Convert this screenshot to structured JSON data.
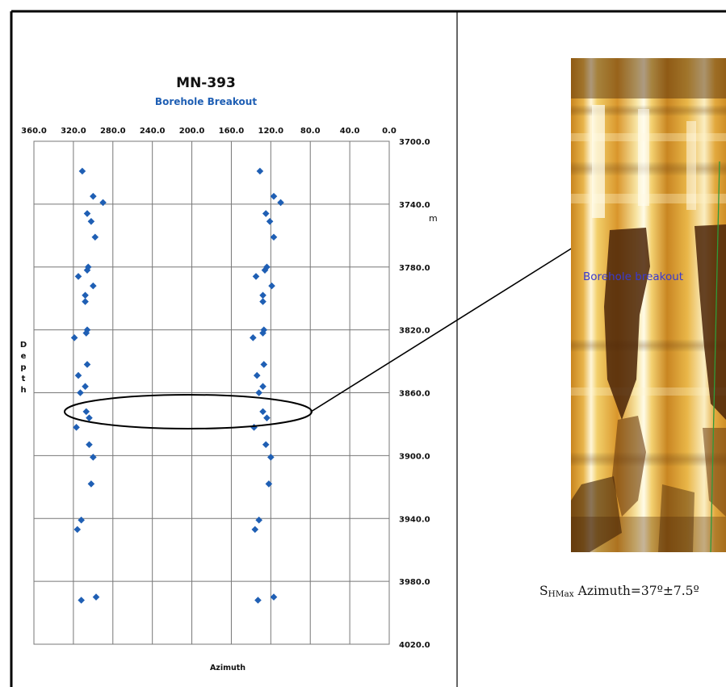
{
  "chart_data": {
    "type": "scatter",
    "title": "MN-393",
    "subtitle": "Borehole Breakout",
    "xlabel": "Azimuth",
    "ylabel": "Depth",
    "y_unit": "m",
    "xlim": [
      360,
      0
    ],
    "ylim": [
      3700,
      4020
    ],
    "x_reversed": true,
    "y_reversed": true,
    "grid": true,
    "x_tick_labels": [
      "360.0",
      "320.0",
      "280.0",
      "240.0",
      "200.0",
      "160.0",
      "120.0",
      "80.0",
      "40.0",
      "0.0"
    ],
    "y_tick_labels": [
      "3700.0",
      "3740.0",
      "3780.0",
      "3820.0",
      "3860.0",
      "3900.0",
      "3940.0",
      "3980.0",
      "4020.0"
    ],
    "marker_color": "#1f5fb4",
    "points": [
      {
        "x": 311,
        "y": 3719
      },
      {
        "x": 131,
        "y": 3719
      },
      {
        "x": 300,
        "y": 3735
      },
      {
        "x": 117,
        "y": 3735
      },
      {
        "x": 290,
        "y": 3739
      },
      {
        "x": 110,
        "y": 3739
      },
      {
        "x": 306,
        "y": 3746
      },
      {
        "x": 125,
        "y": 3746
      },
      {
        "x": 302,
        "y": 3751
      },
      {
        "x": 121,
        "y": 3751
      },
      {
        "x": 298,
        "y": 3761
      },
      {
        "x": 117,
        "y": 3761
      },
      {
        "x": 305,
        "y": 3780
      },
      {
        "x": 124,
        "y": 3780
      },
      {
        "x": 306,
        "y": 3782
      },
      {
        "x": 126,
        "y": 3782
      },
      {
        "x": 315,
        "y": 3786
      },
      {
        "x": 135,
        "y": 3786
      },
      {
        "x": 300,
        "y": 3792
      },
      {
        "x": 119,
        "y": 3792
      },
      {
        "x": 308,
        "y": 3798
      },
      {
        "x": 128,
        "y": 3798
      },
      {
        "x": 308,
        "y": 3802
      },
      {
        "x": 128,
        "y": 3802
      },
      {
        "x": 306,
        "y": 3820
      },
      {
        "x": 127,
        "y": 3820
      },
      {
        "x": 307,
        "y": 3822
      },
      {
        "x": 128,
        "y": 3822
      },
      {
        "x": 319,
        "y": 3825
      },
      {
        "x": 138,
        "y": 3825
      },
      {
        "x": 306,
        "y": 3842
      },
      {
        "x": 127,
        "y": 3842
      },
      {
        "x": 315,
        "y": 3849
      },
      {
        "x": 134,
        "y": 3849
      },
      {
        "x": 308,
        "y": 3856
      },
      {
        "x": 128,
        "y": 3856
      },
      {
        "x": 313,
        "y": 3860
      },
      {
        "x": 132,
        "y": 3860
      },
      {
        "x": 307,
        "y": 3872
      },
      {
        "x": 128,
        "y": 3872
      },
      {
        "x": 304,
        "y": 3876
      },
      {
        "x": 124,
        "y": 3876
      },
      {
        "x": 317,
        "y": 3882
      },
      {
        "x": 137,
        "y": 3882
      },
      {
        "x": 304,
        "y": 3893
      },
      {
        "x": 125,
        "y": 3893
      },
      {
        "x": 300,
        "y": 3901
      },
      {
        "x": 120,
        "y": 3901
      },
      {
        "x": 302,
        "y": 3918
      },
      {
        "x": 122,
        "y": 3918
      },
      {
        "x": 312,
        "y": 3941
      },
      {
        "x": 132,
        "y": 3941
      },
      {
        "x": 316,
        "y": 3947
      },
      {
        "x": 136,
        "y": 3947
      },
      {
        "x": 297,
        "y": 3990
      },
      {
        "x": 117,
        "y": 3990
      },
      {
        "x": 312,
        "y": 3992
      },
      {
        "x": 133,
        "y": 3992
      }
    ]
  },
  "image_panel": {
    "annotation_label": "Borehole breakout",
    "stress_label_main": "S",
    "stress_label_sub": "HMax",
    "stress_value": " Azimuth=37º±7.5º"
  },
  "colors": {
    "annotation_text": "#3a3ad0",
    "image_base": "#d99a2e"
  }
}
